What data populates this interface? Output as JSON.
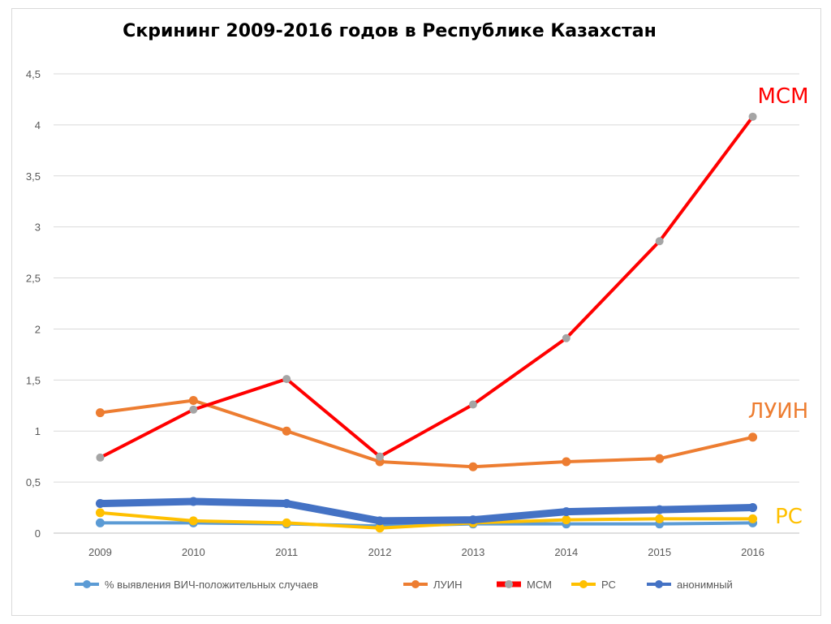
{
  "chart_data": {
    "type": "line",
    "title": "Скрининг 2009-2016 годов в Республике Казахстан",
    "categories": [
      "2009",
      "2010",
      "2011",
      "2012",
      "2013",
      "2014",
      "2015",
      "2016"
    ],
    "ylim": [
      0,
      4.5
    ],
    "yticks": [
      "0",
      "0,5",
      "1",
      "1,5",
      "2",
      "2,5",
      "3",
      "3,5",
      "4",
      "4,5"
    ],
    "grid": true,
    "legend_position": "bottom",
    "series": [
      {
        "name": "% выявления ВИЧ-положительных случаев",
        "color": "#5B9BD5",
        "marker_color": "#5B9BD5",
        "values": [
          0.1,
          0.1,
          0.09,
          0.07,
          0.09,
          0.09,
          0.09,
          0.1
        ]
      },
      {
        "name": "ЛУИН",
        "color": "#ED7D31",
        "marker_color": "#ED7D31",
        "values": [
          1.18,
          1.3,
          1.0,
          0.7,
          0.65,
          0.7,
          0.73,
          0.94
        ]
      },
      {
        "name": "МСМ",
        "color": "#FF0000",
        "marker_color": "#A5A5A5",
        "values": [
          0.74,
          1.21,
          1.51,
          0.75,
          1.26,
          1.91,
          2.86,
          4.08
        ]
      },
      {
        "name": "РС",
        "color": "#FFC000",
        "marker_color": "#FFC000",
        "values": [
          0.2,
          0.12,
          0.1,
          0.05,
          0.1,
          0.13,
          0.14,
          0.14
        ]
      },
      {
        "name": "анонимный",
        "color": "#4472C4",
        "marker_color": "#4472C4",
        "values": [
          0.29,
          0.31,
          0.29,
          0.12,
          0.13,
          0.21,
          0.23,
          0.25
        ]
      }
    ],
    "annotations": [
      {
        "text": "МСМ",
        "color": "#FF0000"
      },
      {
        "text": "ЛУИН",
        "color": "#ED7D31"
      },
      {
        "text": "РС",
        "color": "#FFC000"
      }
    ]
  }
}
